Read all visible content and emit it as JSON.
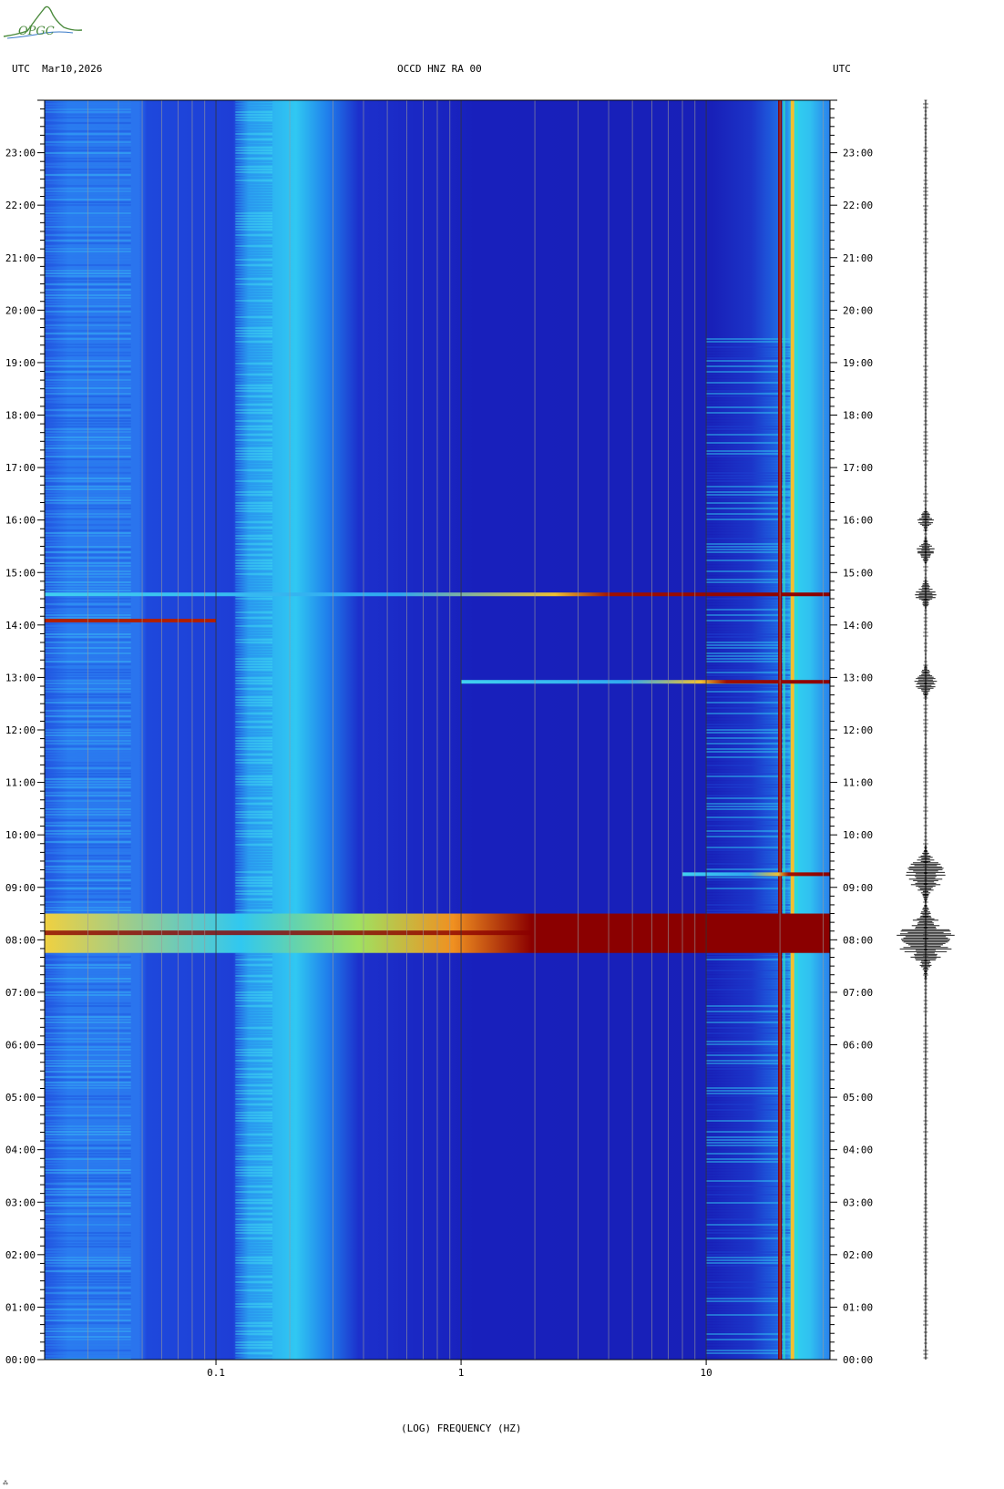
{
  "logo": {
    "text": "OPGC",
    "color": "#4a8a3c"
  },
  "header": {
    "left": "UTC  Mar10,2026",
    "center": "OCCD HNZ RA 00",
    "right": "UTC"
  },
  "colors": {
    "background_low": "#1a1ab0",
    "mid_blue": "#2a6df0",
    "cyan": "#22d8f0",
    "yellow": "#f0e040",
    "red": "#8b0000",
    "grid": "#8a8a8a"
  },
  "chart_data": {
    "type": "heatmap",
    "title": "OCCD HNZ RA 00",
    "xlabel": "(LOG) FREQUENCY (HZ)",
    "ylabel": "UTC",
    "x_scale": "log",
    "xlim": [
      0.02,
      32
    ],
    "x_ticks": [
      {
        "value": 0.1,
        "label": "0.1"
      },
      {
        "value": 1,
        "label": "1"
      },
      {
        "value": 10,
        "label": "10"
      }
    ],
    "ylim_hours": [
      0,
      24
    ],
    "y_tick_labels": [
      "00:00",
      "01:00",
      "02:00",
      "03:00",
      "04:00",
      "05:00",
      "06:00",
      "07:00",
      "08:00",
      "09:00",
      "10:00",
      "11:00",
      "12:00",
      "13:00",
      "14:00",
      "15:00",
      "16:00",
      "17:00",
      "18:00",
      "19:00",
      "20:00",
      "21:00",
      "22:00",
      "23:00"
    ],
    "persistent_lines_hz": [
      20,
      22.5
    ],
    "events": [
      {
        "time": "07:45-08:30",
        "fmin": 0.02,
        "fmax": 32,
        "intensity": "strong"
      },
      {
        "time": "09:15",
        "fmin": 8,
        "fmax": 32,
        "intensity": "moderate"
      },
      {
        "time": "12:55",
        "fmin": 1,
        "fmax": 32,
        "intensity": "moderate"
      },
      {
        "time": "14:05",
        "fmin": 0.02,
        "fmax": 0.1,
        "intensity": "moderate"
      },
      {
        "time": "14:35",
        "fmin": 0.02,
        "fmax": 32,
        "intensity": "moderate"
      }
    ],
    "seismogram": {
      "bursts": [
        {
          "time": "08:00",
          "amplitude": 1.0
        },
        {
          "time": "09:15",
          "amplitude": 0.7
        },
        {
          "time": "12:55",
          "amplitude": 0.4
        },
        {
          "time": "14:35",
          "amplitude": 0.3
        },
        {
          "time": "15:25",
          "amplitude": 0.25
        },
        {
          "time": "16:00",
          "amplitude": 0.2
        }
      ]
    }
  }
}
